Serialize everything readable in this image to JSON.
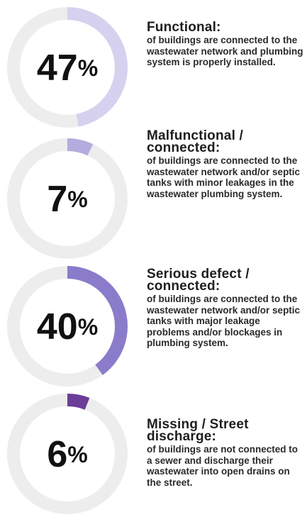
{
  "chart_data": [
    {
      "type": "donut",
      "values": [
        47
      ],
      "value_labels": [
        "47%"
      ],
      "color": "#d5d1ee",
      "title": "Functional:",
      "description": "of buildings are connected to the wastewater network and plumbing system is properly installed."
    },
    {
      "type": "donut",
      "values": [
        7
      ],
      "value_labels": [
        "7%"
      ],
      "color": "#b3acdf",
      "title": "Malfunctional / connected:",
      "description": "of buildings are connected to the wastewater network and/or septic tanks with minor leakages in the wastewater plumbing system."
    },
    {
      "type": "donut",
      "values": [
        40
      ],
      "value_labels": [
        "40%"
      ],
      "color": "#8a7cca",
      "title": "Serious defect / connected:",
      "description": "of buildings are connected to the wastewater network and/or septic tanks with major leakage problems and/or blockages in plumbing system."
    },
    {
      "type": "donut",
      "values": [
        6
      ],
      "value_labels": [
        "6%"
      ],
      "color": "#6b3d99",
      "title": "Missing / Street discharge:",
      "description": "of buildings are not connected to a sewer and discharge their wastewater into open drains on the street."
    }
  ]
}
